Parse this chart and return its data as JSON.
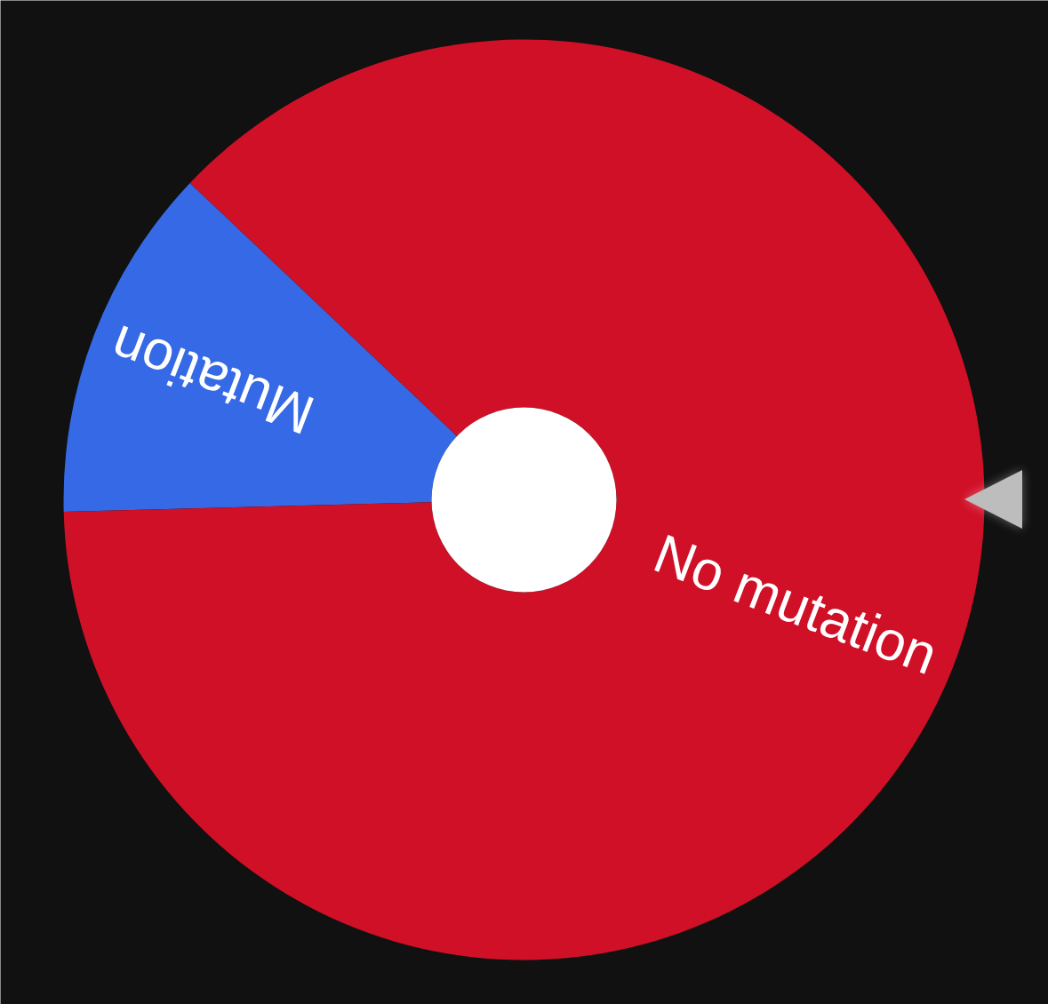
{
  "chart_data": {
    "type": "donut",
    "categories": [
      "Mutation",
      "No mutation"
    ],
    "values": [
      12.5,
      87.5
    ],
    "colors": [
      "#3569e6",
      "#d01027"
    ]
  }
}
